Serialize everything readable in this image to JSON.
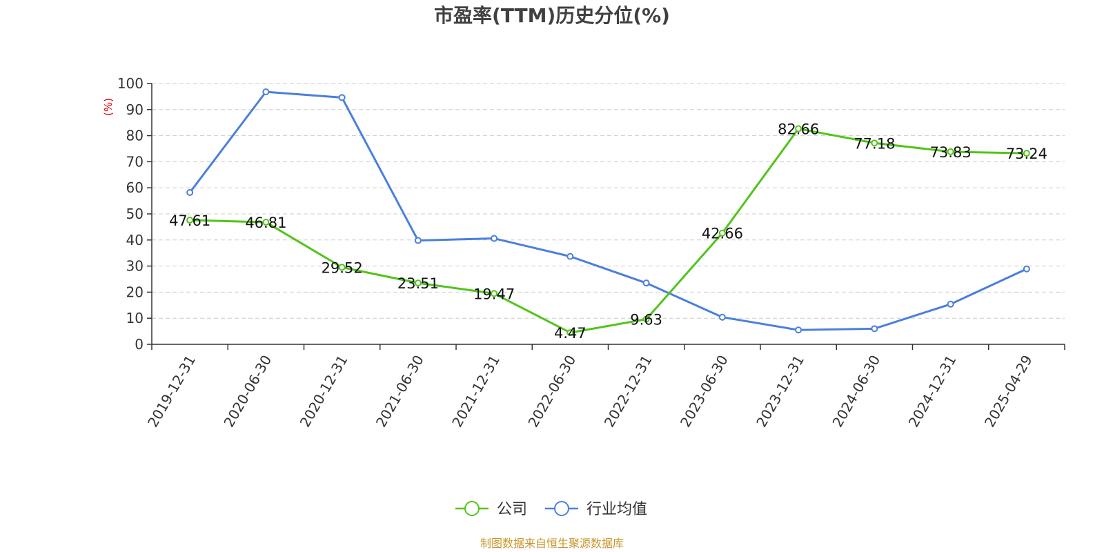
{
  "chart_data": {
    "type": "line",
    "title": "市盈率(TTM)历史分位(%)",
    "ylabel": "(%)",
    "xlabel": "",
    "ylim": [
      0,
      100
    ],
    "yticks": [
      "0",
      "10",
      "20",
      "30",
      "40",
      "50",
      "60",
      "70",
      "80",
      "90",
      "100"
    ],
    "grid": true,
    "legend_position": "bottom",
    "categories": [
      "2019-12-31",
      "2020-06-30",
      "2020-12-31",
      "2021-06-30",
      "2021-12-31",
      "2022-06-30",
      "2022-12-31",
      "2023-06-30",
      "2023-12-31",
      "2024-06-30",
      "2024-12-31",
      "2025-04-29"
    ],
    "series": [
      {
        "name": "公司",
        "color": "#52c41a",
        "show_labels": true,
        "values": [
          47.61,
          46.81,
          29.52,
          23.51,
          19.47,
          4.47,
          9.63,
          42.66,
          82.66,
          77.18,
          73.83,
          73.24
        ],
        "labels": [
          "47.61",
          "46.81",
          "29.52",
          "23.51",
          "19.47",
          "4.47",
          "9.63",
          "42.66",
          "82.66",
          "77.18",
          "73.83",
          "73.24"
        ]
      },
      {
        "name": "行业均值",
        "color": "#4a7fdc",
        "show_labels": false,
        "values": [
          58.2,
          96.8,
          94.6,
          39.8,
          40.6,
          33.7,
          23.5,
          10.4,
          5.5,
          6.0,
          15.4,
          28.9
        ]
      }
    ],
    "source": "制图数据来自恒生聚源数据库"
  }
}
